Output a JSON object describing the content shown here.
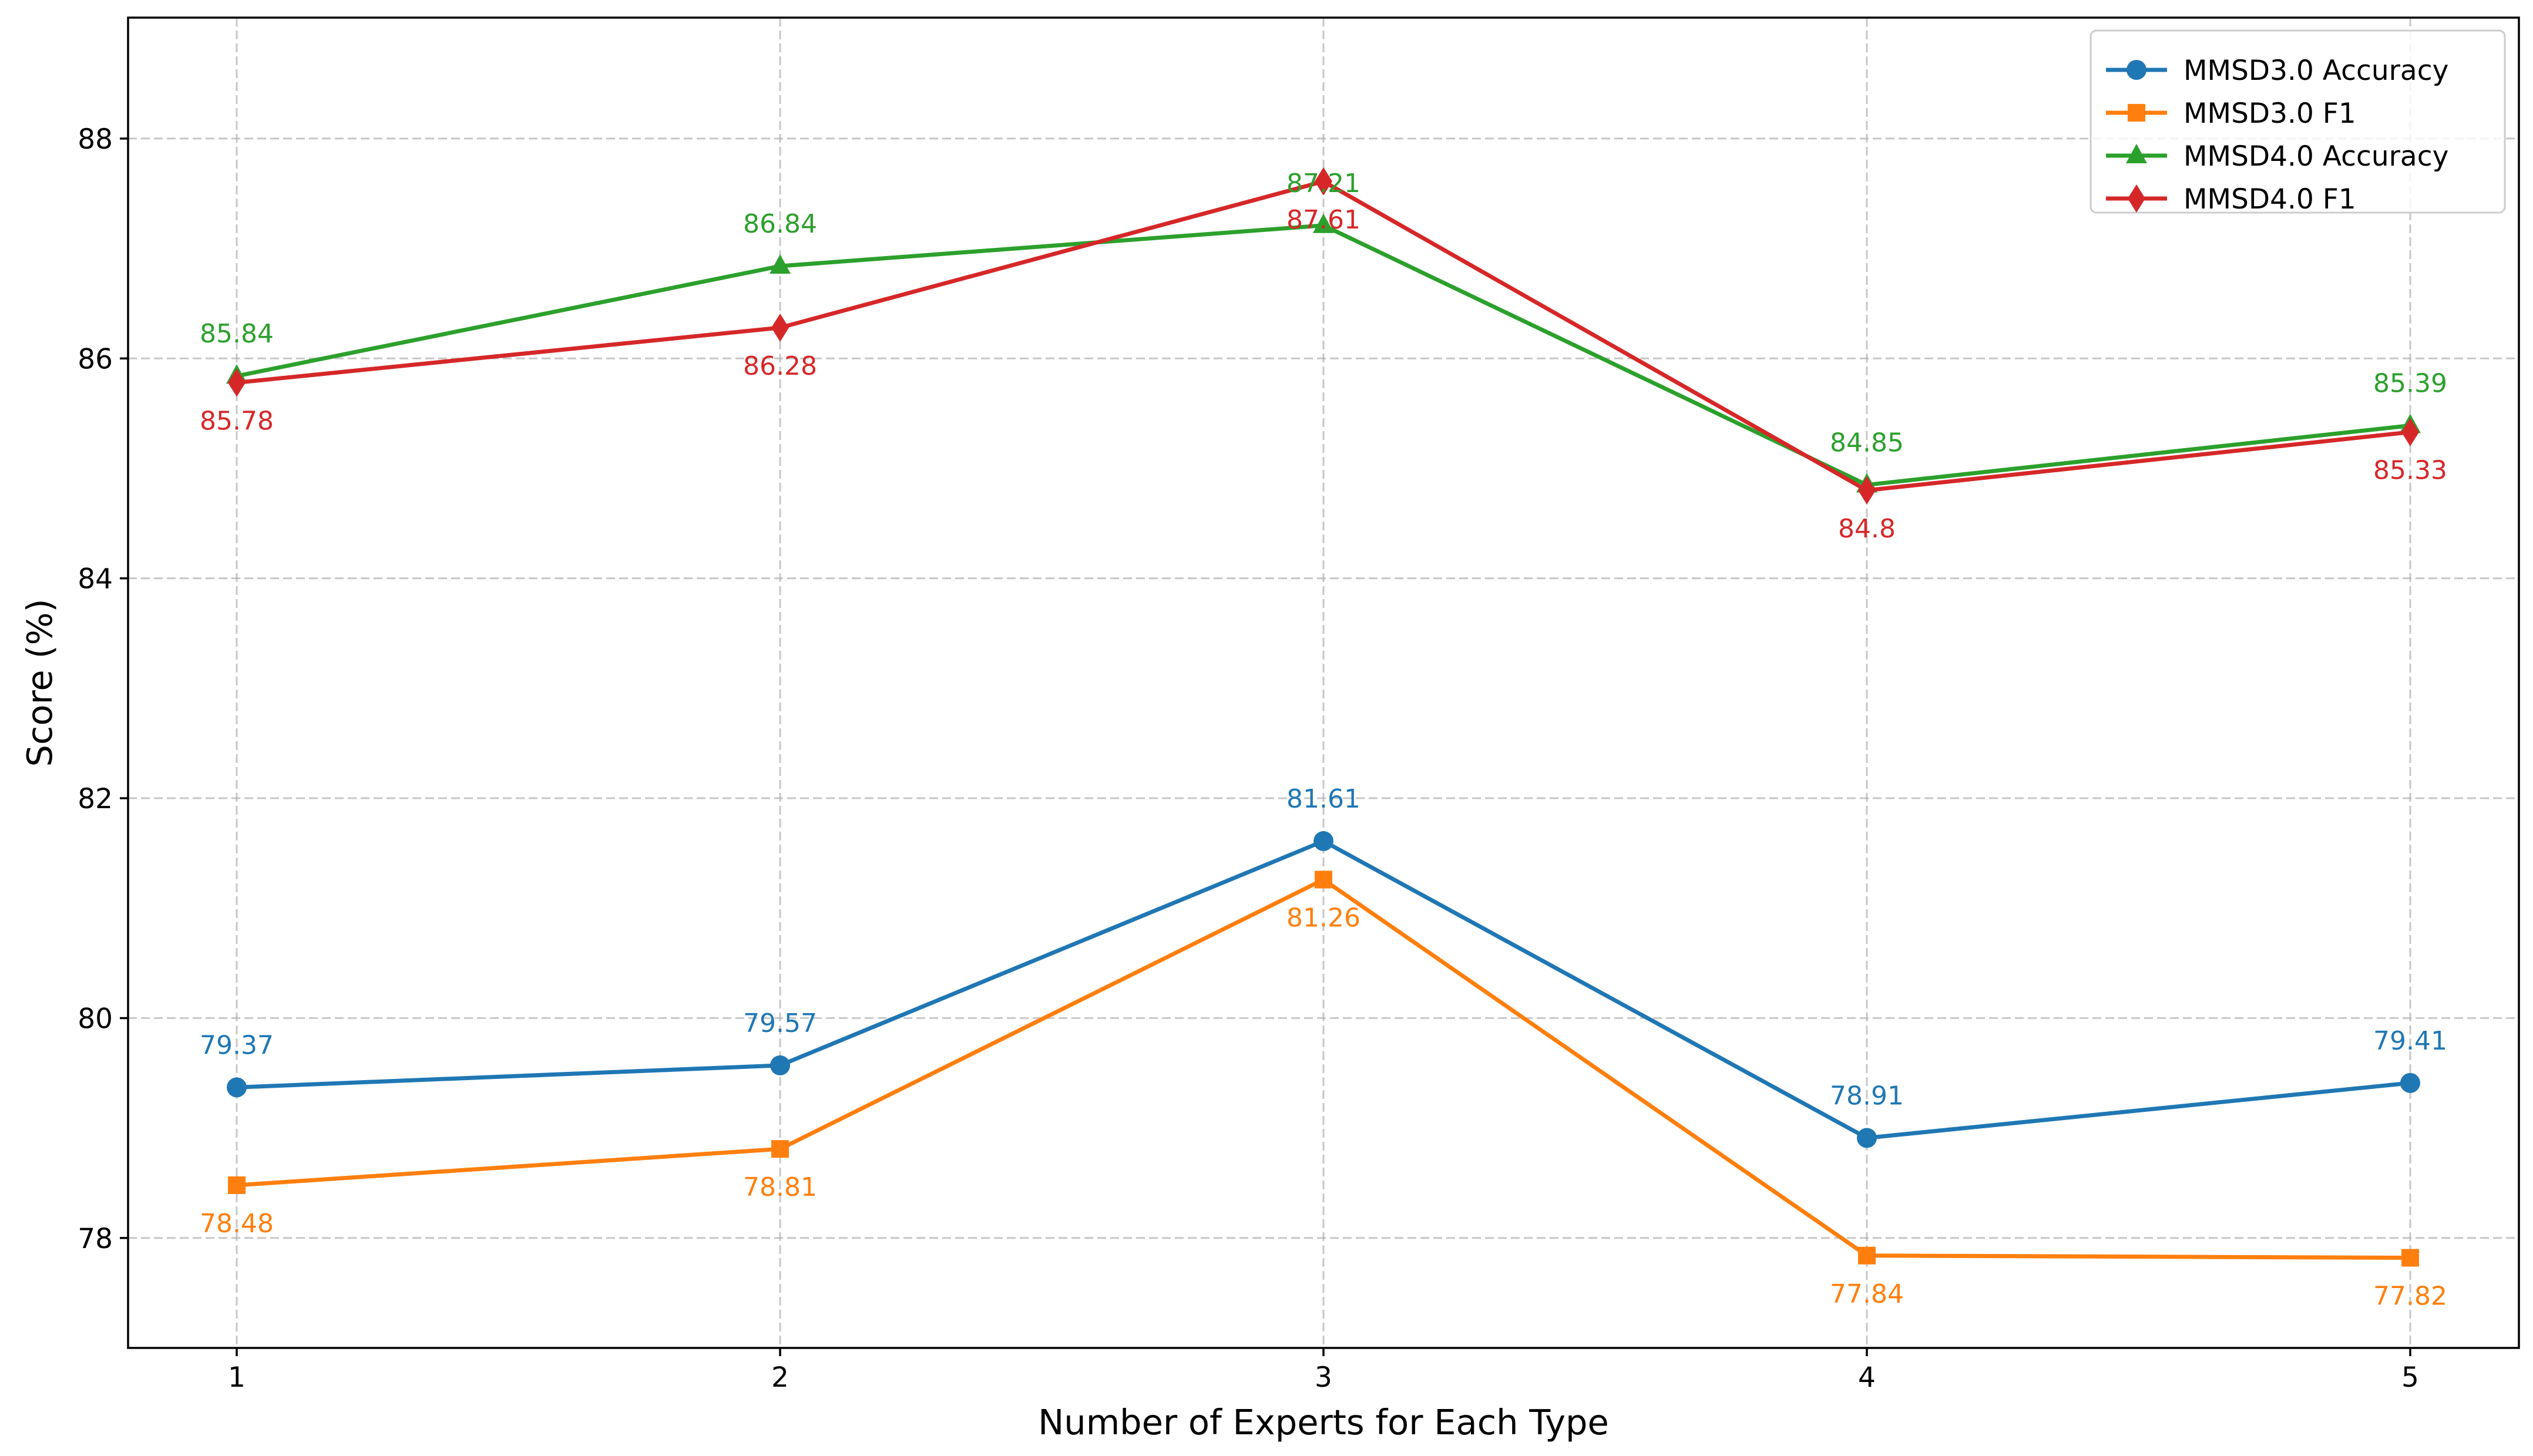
{
  "chart_data": {
    "type": "line",
    "title": "",
    "xlabel": "Number of Experts for Each Type",
    "ylabel": "Score (%)",
    "x": [
      1,
      2,
      3,
      4,
      5
    ],
    "xlim": [
      0.8,
      5.2
    ],
    "ylim": [
      77.0,
      89.1
    ],
    "xticks": [
      "1",
      "2",
      "3",
      "4",
      "5"
    ],
    "yticks": [
      78,
      80,
      82,
      84,
      86,
      88
    ],
    "grid": true,
    "legend_position": "top-right",
    "series": [
      {
        "name": "MMSD3.0 Accuracy",
        "values": [
          79.37,
          79.57,
          81.61,
          78.91,
          79.41
        ],
        "labels": [
          "79.37",
          "79.57",
          "81.61",
          "78.91",
          "79.41"
        ],
        "color": "#1f77b4",
        "marker": "circle",
        "label_position": "above"
      },
      {
        "name": "MMSD3.0 F1",
        "values": [
          78.48,
          78.81,
          81.26,
          77.84,
          77.82
        ],
        "labels": [
          "78.48",
          "78.81",
          "81.26",
          "77.84",
          "77.82"
        ],
        "color": "#ff7f0e",
        "marker": "square",
        "label_position": "below"
      },
      {
        "name": "MMSD4.0 Accuracy",
        "values": [
          85.84,
          86.84,
          87.21,
          84.85,
          85.39
        ],
        "labels": [
          "85.84",
          "86.84",
          "87.21",
          "84.85",
          "85.39"
        ],
        "color": "#2ca02c",
        "marker": "triangle",
        "label_position": "above"
      },
      {
        "name": "MMSD4.0 F1",
        "values": [
          85.78,
          86.28,
          87.61,
          84.8,
          85.33
        ],
        "labels": [
          "85.78",
          "86.28",
          "87.61",
          "84.8",
          "85.33"
        ],
        "color": "#d62728",
        "marker": "diamond",
        "label_position": "below"
      }
    ]
  }
}
